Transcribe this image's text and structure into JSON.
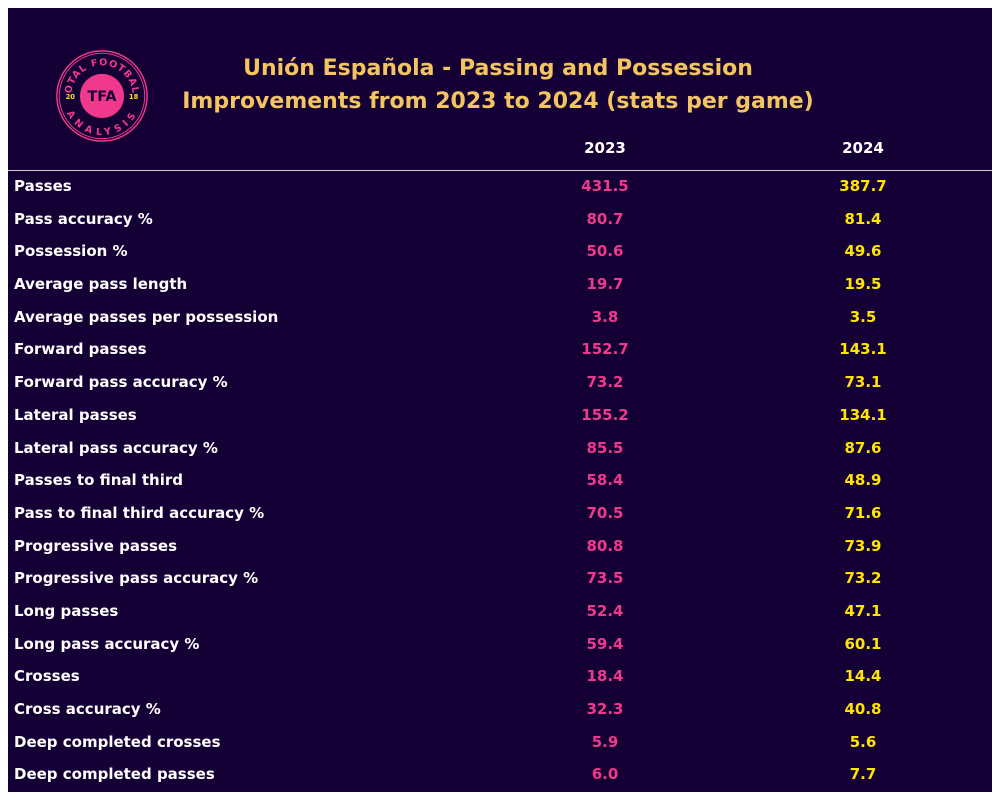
{
  "logo": {
    "text_top": "TOTAL FOOTBALL",
    "text_bottom": "ANALYSIS",
    "center": "TFA",
    "year_left": "20",
    "year_right": "18",
    "colors": {
      "ring": "#f0388c",
      "center": "#f0388c",
      "year": "#ffe500"
    }
  },
  "title": {
    "line1": "Unión Española - Passing and Possession",
    "line2": "Improvements from 2023 to 2024 (stats per game)"
  },
  "columns": [
    "2023",
    "2024"
  ],
  "colors": {
    "background": "#150035",
    "title": "#f2c462",
    "col_2023": "#f0388c",
    "col_2024": "#ffe500"
  },
  "rows": [
    {
      "label": "Passes",
      "y2023": "431.5",
      "y2024": "387.7"
    },
    {
      "label": "Pass accuracy %",
      "y2023": "80.7",
      "y2024": "81.4"
    },
    {
      "label": "Possession %",
      "y2023": "50.6",
      "y2024": "49.6"
    },
    {
      "label": "Average pass length",
      "y2023": "19.7",
      "y2024": "19.5"
    },
    {
      "label": "Average passes per possession",
      "y2023": "3.8",
      "y2024": "3.5"
    },
    {
      "label": "Forward passes",
      "y2023": "152.7",
      "y2024": "143.1"
    },
    {
      "label": "Forward pass accuracy %",
      "y2023": "73.2",
      "y2024": "73.1"
    },
    {
      "label": "Lateral passes",
      "y2023": "155.2",
      "y2024": "134.1"
    },
    {
      "label": "Lateral pass accuracy %",
      "y2023": "85.5",
      "y2024": "87.6"
    },
    {
      "label": "Passes to final third",
      "y2023": "58.4",
      "y2024": "48.9"
    },
    {
      "label": "Pass to final third accuracy %",
      "y2023": "70.5",
      "y2024": "71.6"
    },
    {
      "label": "Progressive passes",
      "y2023": "80.8",
      "y2024": "73.9"
    },
    {
      "label": "Progressive pass accuracy %",
      "y2023": "73.5",
      "y2024": "73.2"
    },
    {
      "label": "Long passes",
      "y2023": "52.4",
      "y2024": "47.1"
    },
    {
      "label": "Long pass accuracy %",
      "y2023": "59.4",
      "y2024": "60.1"
    },
    {
      "label": "Crosses",
      "y2023": "18.4",
      "y2024": "14.4"
    },
    {
      "label": "Cross accuracy %",
      "y2023": "32.3",
      "y2024": "40.8"
    },
    {
      "label": "Deep completed crosses",
      "y2023": "5.9",
      "y2024": "5.6"
    },
    {
      "label": "Deep completed passes",
      "y2023": "6.0",
      "y2024": "7.7"
    }
  ]
}
